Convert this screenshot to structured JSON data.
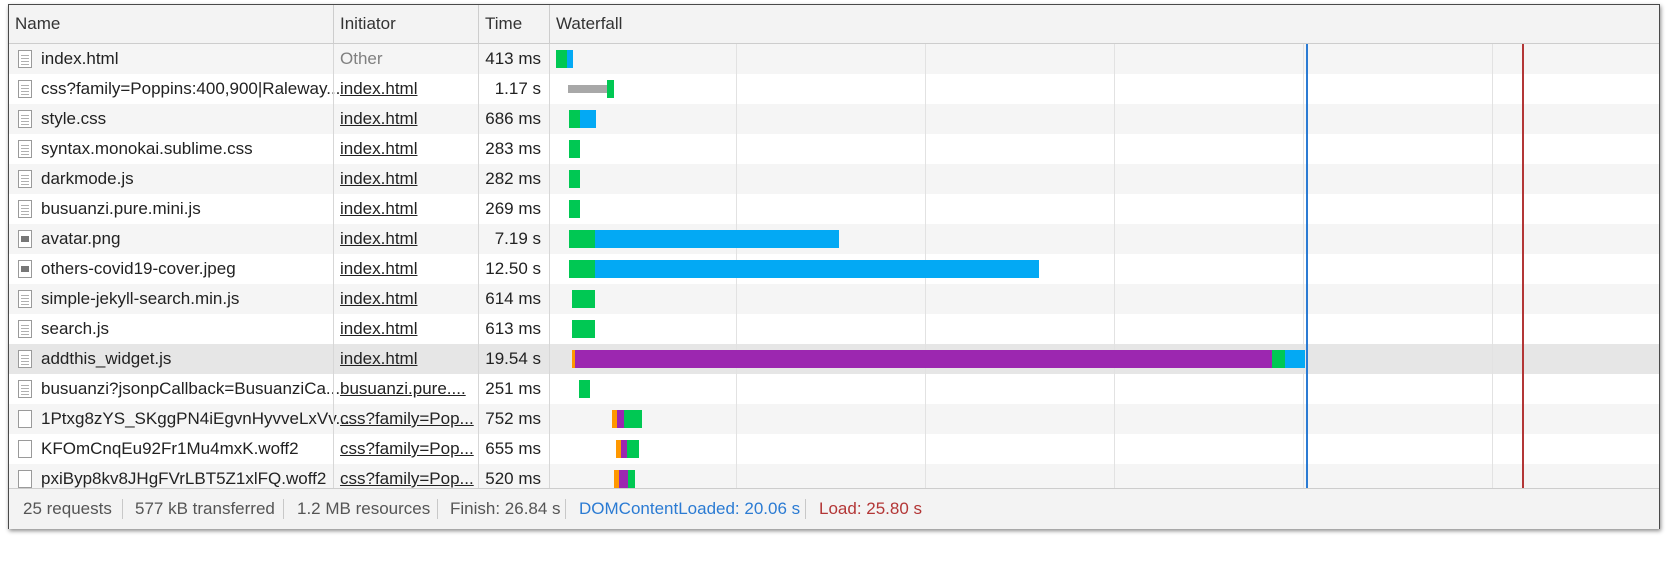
{
  "columns": {
    "name": "Name",
    "initiator": "Initiator",
    "time": "Time",
    "waterfall": "Waterfall"
  },
  "requests": [
    {
      "name": "index.html",
      "initiator": "Other",
      "time": "413 ms",
      "icon": "document-icon"
    },
    {
      "name": "css?family=Poppins:400,900|Raleway...",
      "initiator": "index.html",
      "time": "1.17 s",
      "icon": "document-icon"
    },
    {
      "name": "style.css",
      "initiator": "index.html",
      "time": "686 ms",
      "icon": "document-icon"
    },
    {
      "name": "syntax.monokai.sublime.css",
      "initiator": "index.html",
      "time": "283 ms",
      "icon": "document-icon"
    },
    {
      "name": "darkmode.js",
      "initiator": "index.html",
      "time": "282 ms",
      "icon": "document-icon"
    },
    {
      "name": "busuanzi.pure.mini.js",
      "initiator": "index.html",
      "time": "269 ms",
      "icon": "document-icon"
    },
    {
      "name": "avatar.png",
      "initiator": "index.html",
      "time": "7.19 s",
      "icon": "image-icon"
    },
    {
      "name": "others-covid19-cover.jpeg",
      "initiator": "index.html",
      "time": "12.50 s",
      "icon": "image-icon"
    },
    {
      "name": "simple-jekyll-search.min.js",
      "initiator": "index.html",
      "time": "614 ms",
      "icon": "document-icon"
    },
    {
      "name": "search.js",
      "initiator": "index.html",
      "time": "613 ms",
      "icon": "document-icon"
    },
    {
      "name": "addthis_widget.js",
      "initiator": "index.html",
      "time": "19.54 s",
      "icon": "document-icon"
    },
    {
      "name": "busuanzi?jsonpCallback=BusuanziCa...",
      "initiator": "busuanzi.pure....",
      "time": "251 ms",
      "icon": "document-icon"
    },
    {
      "name": "1Ptxg8zYS_SKggPN4iEgvnHyvveLxVv...",
      "initiator": "css?family=Pop...",
      "time": "752 ms",
      "icon": "font-file-icon"
    },
    {
      "name": "KFOmCnqEu92Fr1Mu4mxK.woff2",
      "initiator": "css?family=Pop...",
      "time": "655 ms",
      "icon": "font-file-icon"
    },
    {
      "name": "pxiByp8kv8JHgFVrLBT5Z1xlFQ.woff2",
      "initiator": "css?family=Pop...",
      "time": "520 ms",
      "icon": "font-file-icon"
    }
  ],
  "status": {
    "requests": "25 requests",
    "transferred": "577 kB transferred",
    "resources": "1.2 MB resources",
    "finish": "Finish: 26.84 s",
    "dom_content_loaded": "DOMContentLoaded: 20.06 s",
    "load": "Load: 25.80 s"
  },
  "colors": {
    "waiting": "#00c853",
    "download": "#03a9f4",
    "queued": "#a8a8a8",
    "ssl": "#9c27b0",
    "connect": "#ff9800",
    "dcl_line": "#2b7bd3",
    "load_line": "#b33636"
  }
}
